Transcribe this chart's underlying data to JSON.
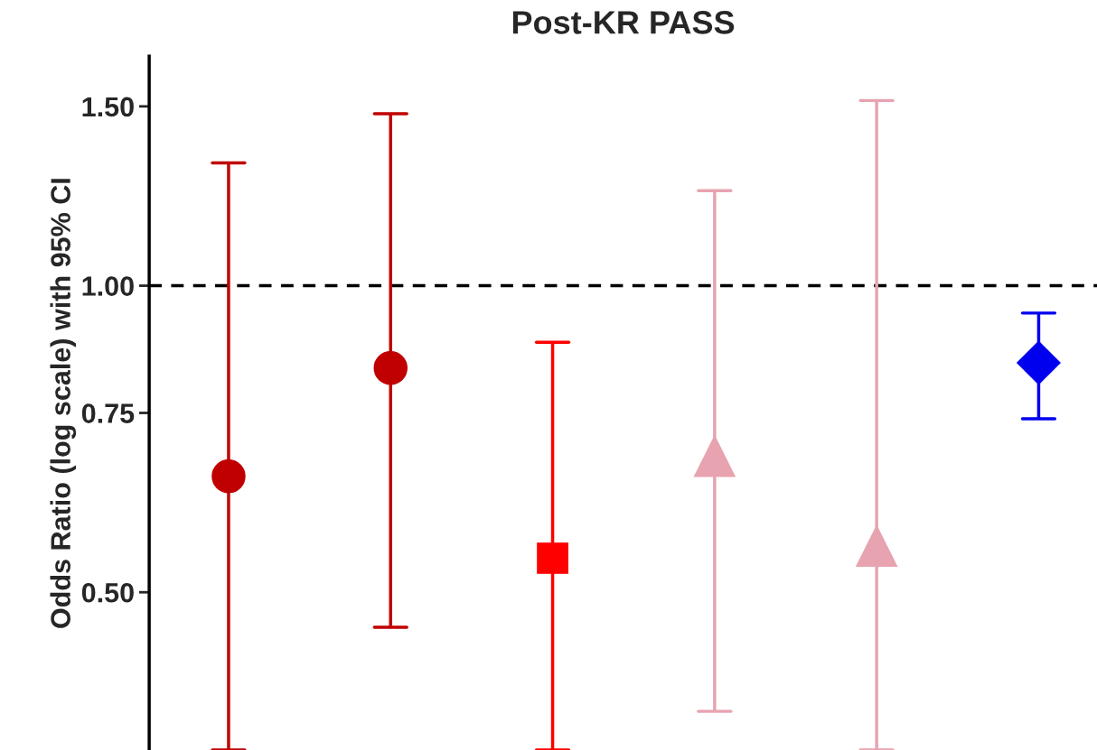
{
  "chart_data": {
    "type": "scatter",
    "title": "Post-KR PASS",
    "ylabel": "Odds Ratio (log scale) with 95% CI",
    "categories": [
      null,
      null,
      null,
      null,
      null,
      null
    ],
    "series": [
      {
        "color": "#c00000",
        "marker": "circle",
        "values": [
          0.65,
          0.83,
          null,
          null,
          null,
          null
        ],
        "errors": [
          [
            0.35,
            1.32
          ],
          [
            0.462,
            1.475
          ],
          null,
          null,
          null,
          null
        ]
      },
      {
        "color": "#ff0000",
        "marker": "square",
        "values": [
          null,
          null,
          0.54,
          null,
          null,
          null
        ],
        "errors": [
          null,
          null,
          [
            0.35,
            0.88
          ],
          null,
          null,
          null
        ]
      },
      {
        "color": "#e8a3b0",
        "marker": "triangle",
        "values": [
          null,
          null,
          null,
          0.68,
          0.555,
          null
        ],
        "errors": [
          null,
          null,
          null,
          [
            0.382,
            1.24
          ],
          [
            0.35,
            1.52
          ],
          null
        ]
      },
      {
        "color": "#0000ee",
        "marker": "diamond",
        "values": [
          null,
          null,
          null,
          null,
          null,
          0.84
        ],
        "errors": [
          null,
          null,
          null,
          null,
          null,
          [
            0.74,
            0.94
          ]
        ]
      }
    ],
    "log": "y",
    "ylim": [
      0.35,
      1.68
    ],
    "yticks": [
      {
        "value": 0.5,
        "label": "0.50"
      },
      {
        "value": 0.75,
        "label": "0.75"
      },
      {
        "value": 1.0,
        "label": "1.00"
      },
      {
        "value": 1.5,
        "label": "1.50"
      }
    ],
    "ref_lines": [
      {
        "axis": "y",
        "value": 1.0,
        "color": "#000000",
        "line_style": "dashed"
      }
    ],
    "grid": false,
    "legend": false,
    "tick_labels": "y"
  }
}
